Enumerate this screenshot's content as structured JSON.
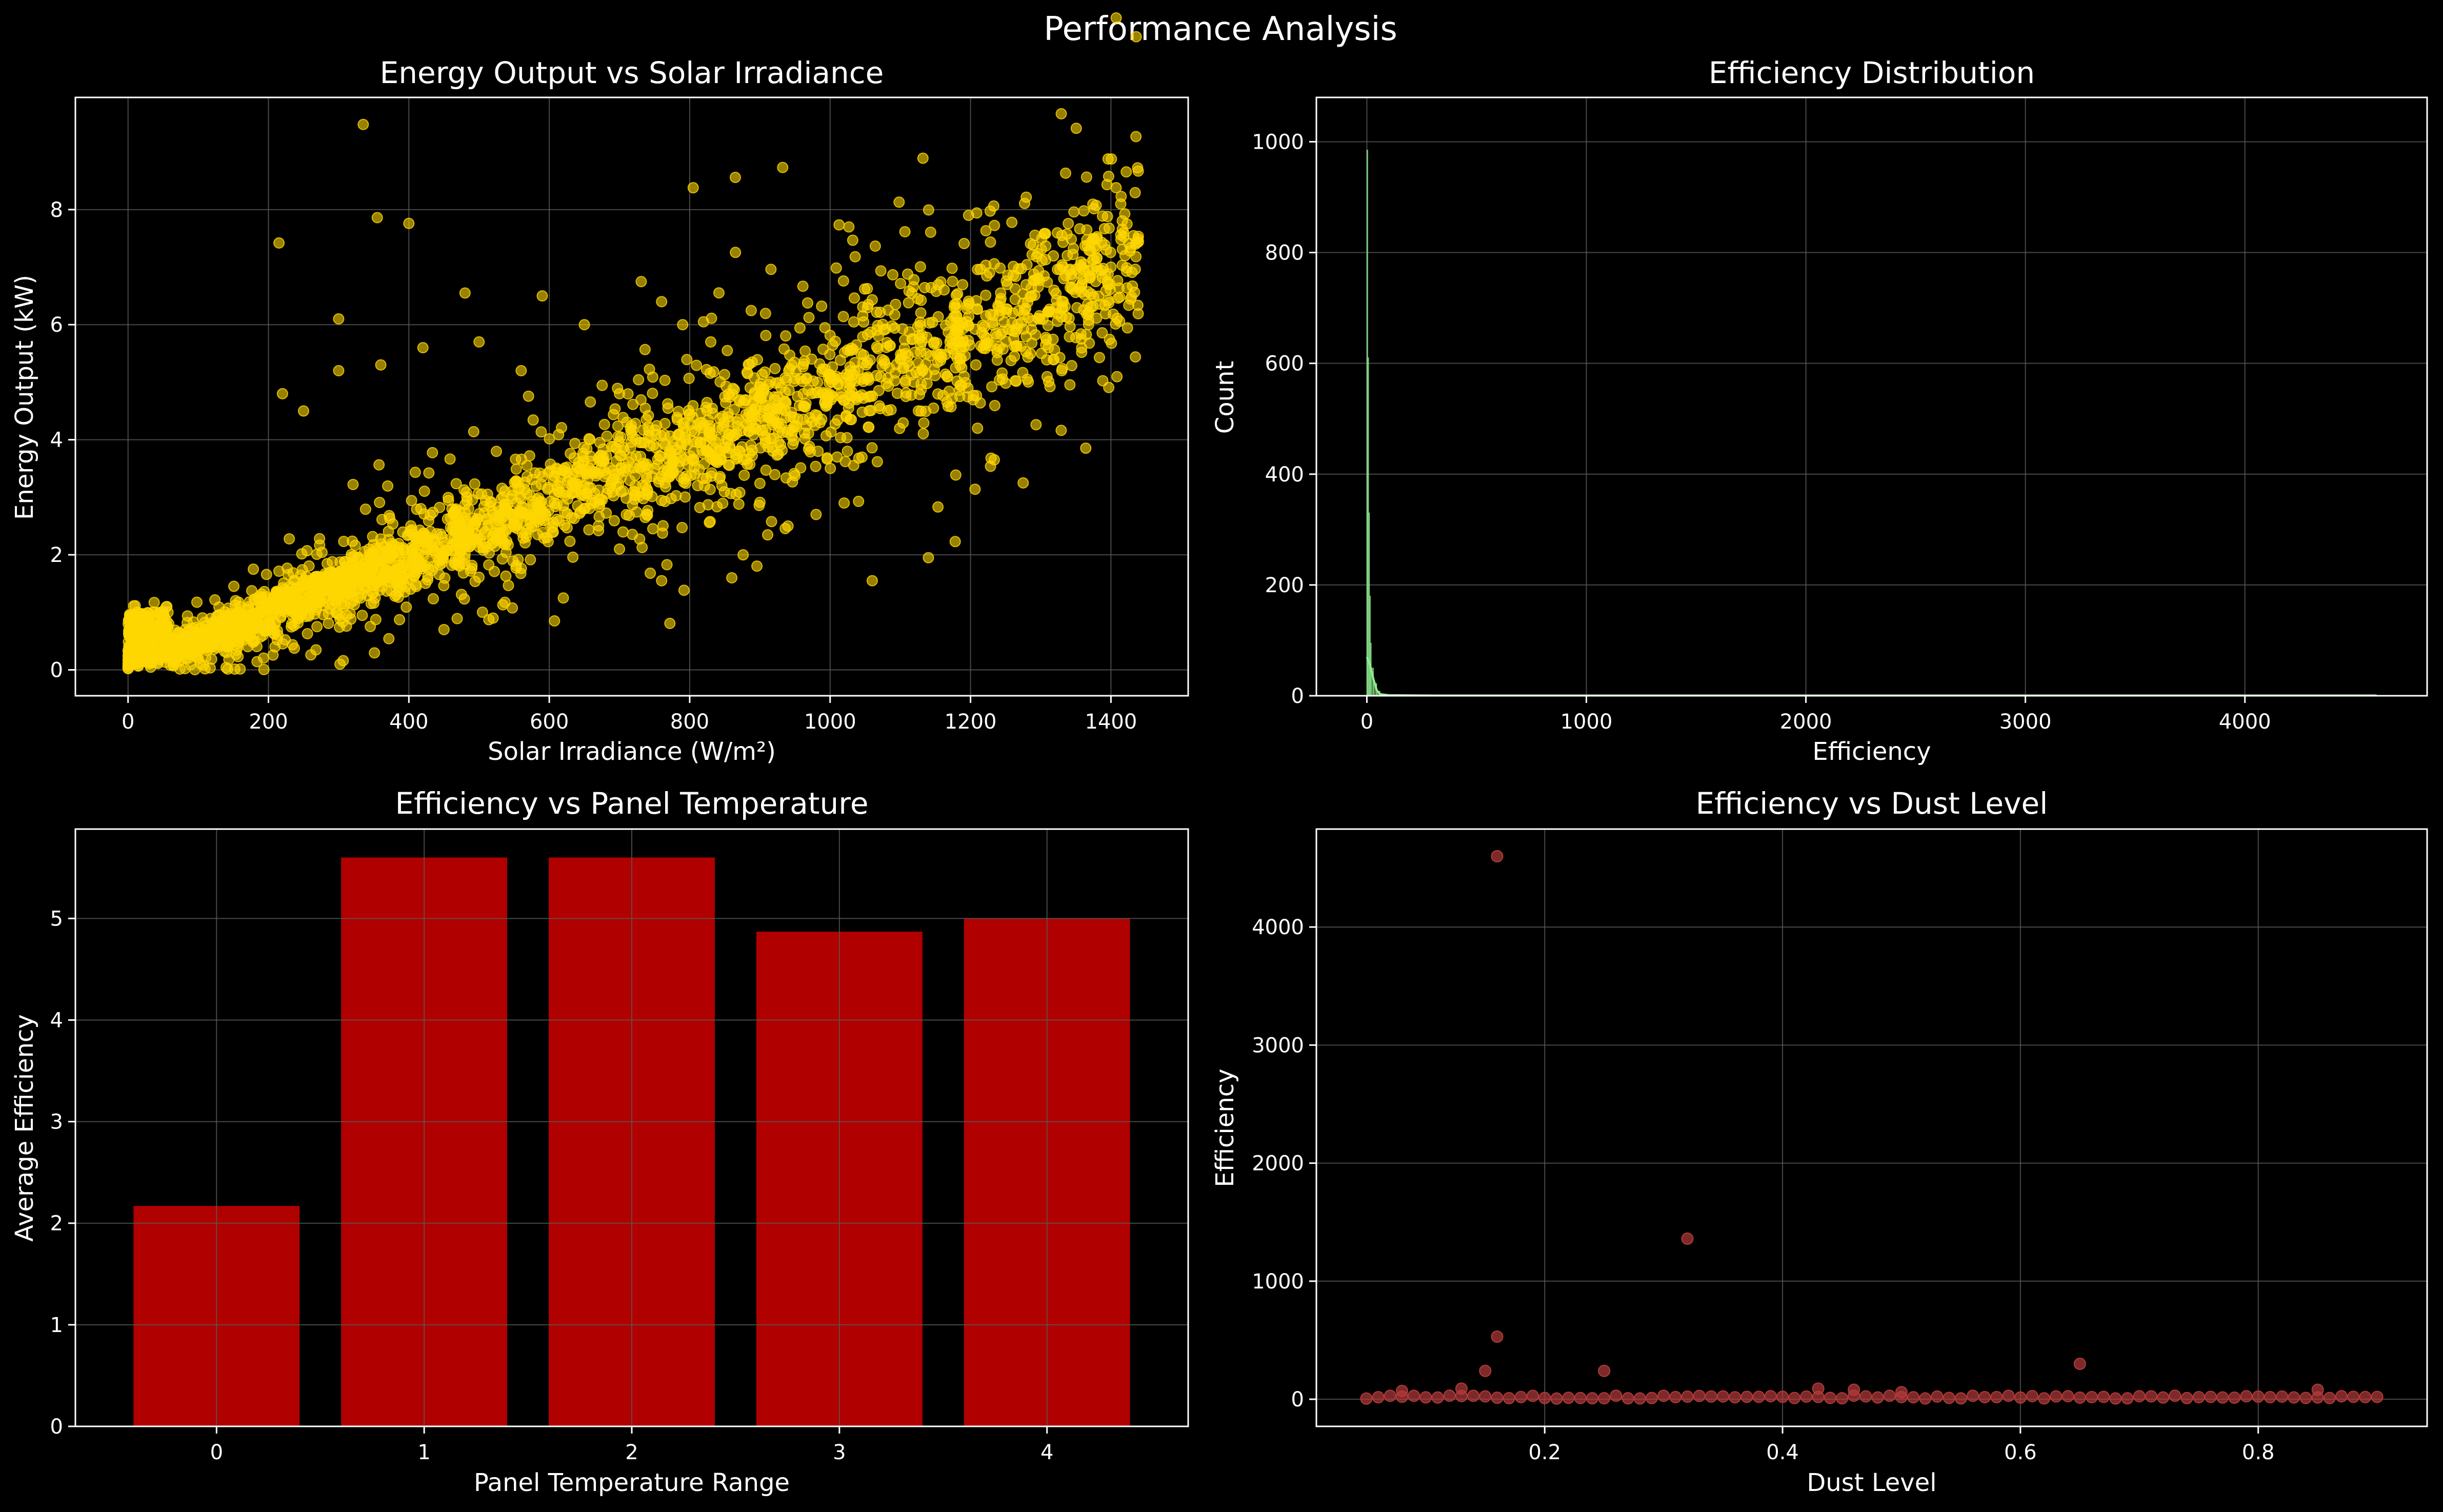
{
  "figure": {
    "title": "Performance Analysis"
  },
  "colors": {
    "background": "#000000",
    "grid": "#5a5a5a",
    "axes": "#ffffff",
    "scatter1": "#ffd700",
    "hist": "#90ee90",
    "bar": "#b00000",
    "scatter2": "#b33a3a"
  },
  "chart_data": [
    {
      "id": "p1",
      "type": "scatter",
      "title": "Energy Output vs Solar Irradiance",
      "xlabel": "Solar Irradiance (W/m²)",
      "ylabel": "Energy Output (kW)",
      "xlim": [
        -75,
        1510
      ],
      "ylim": [
        -0.45,
        9.95
      ],
      "xticks": [
        0,
        200,
        400,
        600,
        800,
        1000,
        1200,
        1400
      ],
      "yticks": [
        0,
        2,
        4,
        6,
        8
      ],
      "grid": true,
      "color": "#ffd700",
      "trend": {
        "slope": 0.0049,
        "intercept": 0.0,
        "x_range": [
          0,
          1440
        ]
      },
      "outliers": [
        [
          335,
          9.48
        ],
        [
          215,
          7.42
        ],
        [
          355,
          7.86
        ],
        [
          400,
          7.76
        ],
        [
          805,
          8.38
        ],
        [
          865,
          8.56
        ],
        [
          1275,
          3.25
        ],
        [
          1140,
          1.95
        ],
        [
          1060,
          1.55
        ],
        [
          1010,
          3.7
        ],
        [
          940,
          2.5
        ],
        [
          860,
          1.6
        ],
        [
          760,
          1.55
        ],
        [
          700,
          2.1
        ],
        [
          620,
          1.25
        ],
        [
          520,
          0.9
        ],
        [
          450,
          0.7
        ],
        [
          300,
          5.2
        ],
        [
          250,
          4.5
        ],
        [
          220,
          4.8
        ],
        [
          480,
          6.55
        ],
        [
          590,
          6.5
        ],
        [
          650,
          6.0
        ],
        [
          760,
          6.4
        ],
        [
          790,
          6.0
        ],
        [
          830,
          5.7
        ],
        [
          1020,
          2.9
        ],
        [
          980,
          2.7
        ],
        [
          1330,
          5.2
        ],
        [
          1210,
          4.2
        ],
        [
          1330,
          7.55
        ],
        [
          1380,
          7.5
        ],
        [
          1420,
          7.2
        ],
        [
          1400,
          7.0
        ],
        [
          360,
          5.3
        ],
        [
          420,
          5.6
        ],
        [
          500,
          5.7
        ],
        [
          560,
          5.2
        ],
        [
          700,
          4.8
        ],
        [
          300,
          6.1
        ]
      ],
      "dense_count": 3000
    },
    {
      "id": "p2",
      "type": "bar",
      "title": "Efficiency Distribution",
      "xlabel": "Efficiency",
      "ylabel": "Count",
      "xlim": [
        -230,
        4830
      ],
      "ylim": [
        0,
        1080
      ],
      "xticks": [
        0,
        1000,
        2000,
        3000,
        4000
      ],
      "yticks": [
        0,
        200,
        400,
        600,
        800,
        1000
      ],
      "grid": true,
      "color": "#90ee90",
      "bins": [
        [
          0,
          4
        ],
        [
          4,
          8
        ],
        [
          8,
          12
        ],
        [
          12,
          16
        ],
        [
          16,
          20
        ],
        [
          20,
          30
        ],
        [
          30,
          45
        ],
        [
          45,
          60
        ]
      ],
      "counts": [
        985,
        610,
        330,
        180,
        95,
        50,
        22,
        8
      ],
      "kde": [
        [
          0,
          70
        ],
        [
          15,
          55
        ],
        [
          30,
          30
        ],
        [
          45,
          10
        ],
        [
          60,
          3
        ],
        [
          100,
          1
        ],
        [
          300,
          0.5
        ],
        [
          4600,
          0.5
        ]
      ]
    },
    {
      "id": "p3",
      "type": "bar",
      "title": "Efficiency vs Panel Temperature",
      "xlabel": "Panel Temperature Range",
      "ylabel": "Average Efficiency",
      "xlim": [
        -0.68,
        4.68
      ],
      "ylim": [
        0,
        5.88
      ],
      "categories": [
        "0",
        "1",
        "2",
        "3",
        "4"
      ],
      "values": [
        2.17,
        5.6,
        5.6,
        4.87,
        5.0
      ],
      "yticks": [
        0,
        1,
        2,
        3,
        4,
        5
      ],
      "grid": true,
      "color": "#b00000"
    },
    {
      "id": "p4",
      "type": "scatter",
      "title": "Efficiency vs Dust Level",
      "xlabel": "Dust Level",
      "ylabel": "Efficiency",
      "xlim": [
        0.008,
        0.942
      ],
      "ylim": [
        -230,
        4830
      ],
      "xticks": [
        0.2,
        0.4,
        0.6,
        0.8
      ],
      "yticks": [
        0,
        1000,
        2000,
        3000,
        4000
      ],
      "grid": true,
      "color": "#b33a3a",
      "points": [
        [
          0.16,
          4600
        ],
        [
          0.32,
          1360
        ],
        [
          0.16,
          530
        ],
        [
          0.65,
          300
        ],
        [
          0.15,
          240
        ],
        [
          0.25,
          240
        ],
        [
          0.43,
          90
        ],
        [
          0.46,
          80
        ],
        [
          0.85,
          80
        ],
        [
          0.13,
          90
        ],
        [
          0.08,
          70
        ],
        [
          0.5,
          60
        ]
      ],
      "baseline": {
        "x_range": [
          0.05,
          0.9
        ],
        "step": 0.01,
        "y": 5
      }
    }
  ]
}
